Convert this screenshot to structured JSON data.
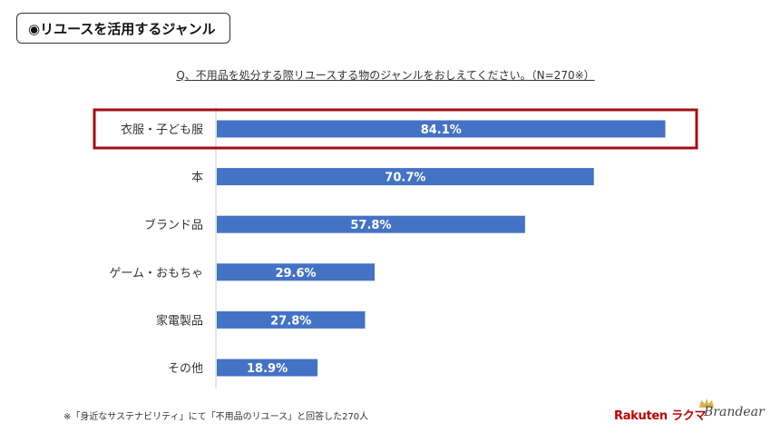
{
  "header": {
    "title": "◉リユースを活用するジャンル"
  },
  "question": "Q、不用品を処分する際リユースする物のジャンルをおしえてください。（N=270※）",
  "footnote": "※「身近なサステナビリティ」にて「不用品のリユース」と回答した270人",
  "logos": {
    "rakuten": "Rakuten ラクマ",
    "brandear": "Brandear"
  },
  "colors": {
    "bar": "#4472c4",
    "highlight": "#a50d14",
    "value_label": "#ffffff"
  },
  "chart_data": {
    "type": "bar",
    "orientation": "horizontal",
    "categories": [
      "衣服・子ども服",
      "本",
      "ブランド品",
      "ゲーム・おもちゃ",
      "家電製品",
      "その他"
    ],
    "values": [
      84.1,
      70.7,
      57.8,
      29.6,
      27.8,
      18.9
    ],
    "value_labels": [
      "84.1%",
      "70.7%",
      "57.8%",
      "29.6%",
      "27.8%",
      "18.9%"
    ],
    "unit": "%",
    "xlim": [
      0,
      100
    ],
    "highlight_index": 0,
    "grid": false,
    "legend": false
  }
}
